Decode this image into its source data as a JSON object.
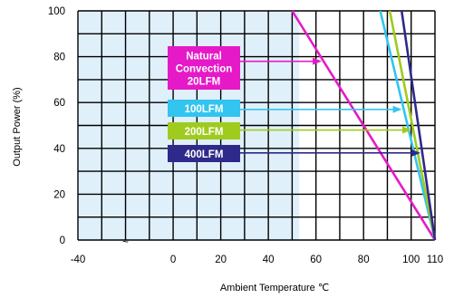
{
  "chart_data": {
    "type": "line",
    "xlabel": "Ambient Temperature ℃",
    "ylabel": "Output Power  (%)",
    "xlim": [
      -40,
      110
    ],
    "ylim": [
      0,
      100
    ],
    "x_ticks": [
      {
        "value": -40,
        "label": "-40"
      },
      {
        "value": -20,
        "label": "~"
      },
      {
        "value": 0,
        "label": "0"
      },
      {
        "value": 20,
        "label": "20"
      },
      {
        "value": 40,
        "label": "40"
      },
      {
        "value": 60,
        "label": "60"
      },
      {
        "value": 80,
        "label": "80"
      },
      {
        "value": 100,
        "label": "100"
      },
      {
        "value": 110,
        "label": "110"
      }
    ],
    "y_ticks": [
      {
        "value": 0,
        "label": "0"
      },
      {
        "value": 20,
        "label": "20"
      },
      {
        "value": 40,
        "label": "40"
      },
      {
        "value": 60,
        "label": "60"
      },
      {
        "value": 80,
        "label": "80"
      },
      {
        "value": 100,
        "label": "100"
      }
    ],
    "grid": true,
    "shaded_region": {
      "x_from": -40,
      "x_to": 53,
      "color": "#dff0fb"
    },
    "series": [
      {
        "name": "Natural Convection 20LFM",
        "color": "#e619c8",
        "label_color": "#e619c8",
        "x": [
          50,
          110
        ],
        "y": [
          100,
          0
        ],
        "arrow_y": 78
      },
      {
        "name": "100LFM",
        "color": "#33c4f0",
        "label_color": "#33c4f0",
        "x": [
          87,
          110
        ],
        "y": [
          100,
          0
        ],
        "arrow_y": 57
      },
      {
        "name": "200LFM",
        "color": "#9fcb1e",
        "label_color": "#9fcb1e",
        "x": [
          91,
          110
        ],
        "y": [
          100,
          0
        ],
        "arrow_y": 48
      },
      {
        "name": "400LFM",
        "color": "#2e2a8a",
        "label_color": "#2e2a8a",
        "x": [
          96,
          110
        ],
        "y": [
          100,
          0
        ],
        "arrow_y": 38
      }
    ]
  },
  "legend": [
    {
      "lines": [
        "Natural",
        "Convection",
        "20LFM"
      ],
      "color": "#e619c8"
    },
    {
      "lines": [
        "100LFM"
      ],
      "color": "#33c4f0"
    },
    {
      "lines": [
        "200LFM"
      ],
      "color": "#9fcb1e"
    },
    {
      "lines": [
        "400LFM"
      ],
      "color": "#2e2a8a"
    }
  ]
}
